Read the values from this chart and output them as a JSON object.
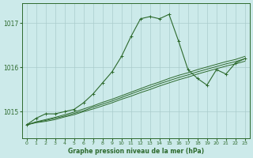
{
  "x": [
    0,
    1,
    2,
    3,
    4,
    5,
    6,
    7,
    8,
    9,
    10,
    11,
    12,
    13,
    14,
    15,
    16,
    17,
    18,
    19,
    20,
    21,
    22,
    23
  ],
  "main_line": [
    1014.7,
    1014.85,
    1014.95,
    1014.95,
    1015.0,
    1015.05,
    1015.2,
    1015.4,
    1015.65,
    1015.9,
    1016.25,
    1016.7,
    1017.1,
    1017.15,
    1017.1,
    1017.2,
    1016.6,
    1015.95,
    1015.75,
    1015.6,
    1015.95,
    1015.85,
    1016.1,
    1016.2
  ],
  "linear1": [
    1014.7,
    1014.75,
    1014.78,
    1014.82,
    1014.88,
    1014.93,
    1015.0,
    1015.06,
    1015.13,
    1015.2,
    1015.28,
    1015.35,
    1015.43,
    1015.5,
    1015.58,
    1015.65,
    1015.72,
    1015.78,
    1015.85,
    1015.91,
    1015.97,
    1016.03,
    1016.08,
    1016.14
  ],
  "linear2": [
    1014.7,
    1014.76,
    1014.8,
    1014.85,
    1014.9,
    1014.96,
    1015.02,
    1015.1,
    1015.17,
    1015.24,
    1015.32,
    1015.4,
    1015.48,
    1015.55,
    1015.63,
    1015.7,
    1015.77,
    1015.83,
    1015.9,
    1015.96,
    1016.02,
    1016.08,
    1016.13,
    1016.2
  ],
  "linear3": [
    1014.7,
    1014.77,
    1014.82,
    1014.87,
    1014.93,
    1014.99,
    1015.06,
    1015.13,
    1015.21,
    1015.28,
    1015.36,
    1015.44,
    1015.52,
    1015.6,
    1015.67,
    1015.75,
    1015.82,
    1015.88,
    1015.95,
    1016.01,
    1016.07,
    1016.13,
    1016.18,
    1016.25
  ],
  "line_color": "#2d6a2d",
  "bg_color": "#cceaea",
  "grid_color": "#aacccc",
  "xlabel": "Graphe pression niveau de la mer (hPa)",
  "yticks": [
    1015,
    1016,
    1017
  ],
  "xticks": [
    0,
    1,
    2,
    3,
    4,
    5,
    6,
    7,
    8,
    9,
    10,
    11,
    12,
    13,
    14,
    15,
    16,
    17,
    18,
    19,
    20,
    21,
    22,
    23
  ],
  "ylim": [
    1014.4,
    1017.45
  ],
  "xlim": [
    -0.5,
    23.5
  ]
}
